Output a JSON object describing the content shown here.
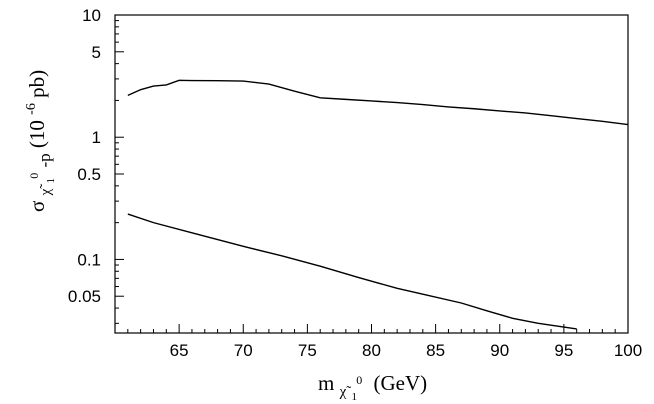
{
  "chart_data": {
    "type": "line",
    "title": "",
    "xlabel": {
      "base": "m",
      "sub": "χ̃",
      "subsub": "1",
      "sup": "0",
      "unit": "(GeV)"
    },
    "ylabel": {
      "base": "σ",
      "sub": "χ̃",
      "subsub": "1",
      "sup": "0",
      "tail": "-p",
      "unit_open": "(10",
      "unit_exp": "-6",
      "unit_close": "pb)"
    },
    "xlim": [
      60,
      100
    ],
    "ylim": [
      0.025,
      10
    ],
    "yscale": "log",
    "grid": false,
    "xticks": [
      65,
      70,
      75,
      80,
      85,
      90,
      95,
      100
    ],
    "yticks": [
      10,
      5,
      1,
      0.5,
      0.1,
      0.05
    ],
    "series": [
      {
        "x": [
          61,
          62,
          63,
          64,
          65,
          66,
          68,
          70,
          72,
          74,
          76,
          78,
          80,
          82,
          84,
          86,
          88,
          90,
          92,
          94,
          96,
          98,
          100
        ],
        "y": [
          2.2,
          2.45,
          2.62,
          2.68,
          2.92,
          2.91,
          2.9,
          2.88,
          2.72,
          2.38,
          2.1,
          2.04,
          1.98,
          1.92,
          1.85,
          1.77,
          1.71,
          1.64,
          1.58,
          1.5,
          1.42,
          1.35,
          1.27
        ]
      },
      {
        "x": [
          61,
          63,
          66,
          70,
          73,
          76,
          79,
          82,
          84,
          87,
          89,
          91,
          93,
          96
        ],
        "y": [
          0.235,
          0.2,
          0.165,
          0.128,
          0.107,
          0.088,
          0.071,
          0.058,
          0.052,
          0.044,
          0.038,
          0.033,
          0.03,
          0.027
        ]
      }
    ]
  }
}
